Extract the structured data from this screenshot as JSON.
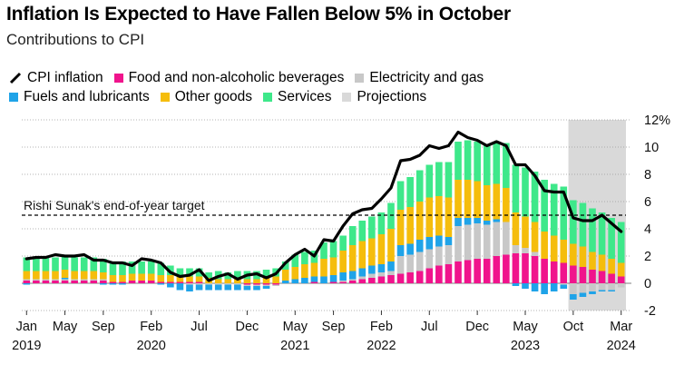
{
  "title": "Inflation Is Expected to Have Fallen Below 5% in October",
  "subtitle": "Contributions to CPI",
  "legend": {
    "cpi": "CPI inflation",
    "food": "Food and non-alcoholic beverages",
    "elec": "Electricity and gas",
    "fuel": "Fuels and lubricants",
    "other": "Other goods",
    "services": "Services",
    "projections": "Projections"
  },
  "colors": {
    "food": "#f0148c",
    "elec": "#c8c8c8",
    "fuel": "#1fa3e8",
    "other": "#f5bd0c",
    "services": "#3ee88a",
    "projections": "#d9d9d9",
    "cpi": "#000000"
  },
  "annotation": "Rishi Sunak's end-of-year target",
  "chart_data": {
    "type": "bar",
    "stacked": true,
    "title": "Inflation Is Expected to Have Fallen Below 5% in October",
    "subtitle": "Contributions to CPI",
    "ylim": [
      -2,
      12
    ],
    "y_ticks": [
      "12%",
      "10",
      "8",
      "6",
      "4",
      "2",
      "0",
      "-2"
    ],
    "y_tick_values": [
      12,
      10,
      8,
      6,
      4,
      2,
      0,
      -2
    ],
    "target_line": 5,
    "projection_start": "2023-10",
    "projection_end": "2024-03",
    "x_ticks": [
      {
        "label": "Jan",
        "year": "2019",
        "index": 0
      },
      {
        "label": "May",
        "year": "",
        "index": 4
      },
      {
        "label": "Sep",
        "year": "",
        "index": 8
      },
      {
        "label": "Feb",
        "year": "2020",
        "index": 13
      },
      {
        "label": "Jul",
        "year": "",
        "index": 18
      },
      {
        "label": "Dec",
        "year": "",
        "index": 23
      },
      {
        "label": "May",
        "year": "2021",
        "index": 28
      },
      {
        "label": "Sep",
        "year": "",
        "index": 32
      },
      {
        "label": "Feb",
        "year": "2022",
        "index": 37
      },
      {
        "label": "Jul",
        "year": "",
        "index": 42
      },
      {
        "label": "Dec",
        "year": "",
        "index": 47
      },
      {
        "label": "May",
        "year": "2023",
        "index": 52
      },
      {
        "label": "Oct",
        "year": "",
        "index": 57
      },
      {
        "label": "Mar",
        "year": "2024",
        "index": 62
      }
    ],
    "categories": [
      "2019-01",
      "2019-02",
      "2019-03",
      "2019-04",
      "2019-05",
      "2019-06",
      "2019-07",
      "2019-08",
      "2019-09",
      "2019-10",
      "2019-11",
      "2019-12",
      "2020-01",
      "2020-02",
      "2020-03",
      "2020-04",
      "2020-05",
      "2020-06",
      "2020-07",
      "2020-08",
      "2020-09",
      "2020-10",
      "2020-11",
      "2020-12",
      "2021-01",
      "2021-02",
      "2021-03",
      "2021-04",
      "2021-05",
      "2021-06",
      "2021-07",
      "2021-08",
      "2021-09",
      "2021-10",
      "2021-11",
      "2021-12",
      "2022-01",
      "2022-02",
      "2022-03",
      "2022-04",
      "2022-05",
      "2022-06",
      "2022-07",
      "2022-08",
      "2022-09",
      "2022-10",
      "2022-11",
      "2022-12",
      "2023-01",
      "2023-02",
      "2023-03",
      "2023-04",
      "2023-05",
      "2023-06",
      "2023-07",
      "2023-08",
      "2023-09",
      "2023-10",
      "2023-11",
      "2023-12",
      "2024-01",
      "2024-02",
      "2024-03"
    ],
    "series": [
      {
        "name": "Food and non-alcoholic beverages",
        "key": "food",
        "values": [
          0.2,
          0.2,
          0.2,
          0.2,
          0.2,
          0.2,
          0.2,
          0.2,
          0.2,
          0.1,
          0.1,
          0.2,
          0.2,
          0.2,
          0.1,
          0.1,
          0.1,
          0.1,
          0.1,
          0.0,
          0.0,
          0.0,
          0.0,
          -0.1,
          -0.1,
          -0.1,
          -0.1,
          0.0,
          0.0,
          0.0,
          0.1,
          0.0,
          0.1,
          0.1,
          0.2,
          0.3,
          0.4,
          0.5,
          0.6,
          0.7,
          0.8,
          0.9,
          1.1,
          1.3,
          1.4,
          1.6,
          1.7,
          1.8,
          1.8,
          2.0,
          2.1,
          2.2,
          2.2,
          2.0,
          1.8,
          1.6,
          1.5,
          1.3,
          1.2,
          1.0,
          0.9,
          0.7,
          0.5
        ]
      },
      {
        "name": "Electricity and gas",
        "key": "elec",
        "values": [
          0.1,
          0.1,
          0.1,
          0.1,
          0.1,
          0.1,
          0.1,
          0.1,
          0.1,
          0.0,
          0.0,
          0.0,
          0.0,
          0.0,
          0.0,
          0.0,
          0.0,
          -0.1,
          -0.1,
          -0.1,
          -0.1,
          -0.1,
          -0.1,
          -0.1,
          -0.1,
          -0.1,
          -0.1,
          0.0,
          0.0,
          0.0,
          0.0,
          0.0,
          0.0,
          0.1,
          0.1,
          0.2,
          0.3,
          0.3,
          0.3,
          1.3,
          1.3,
          1.4,
          1.4,
          1.4,
          1.4,
          2.6,
          2.6,
          2.6,
          2.5,
          2.5,
          2.4,
          0.6,
          0.4,
          0.3,
          0.0,
          0.0,
          -0.1,
          -0.8,
          -0.7,
          -0.6,
          -0.5,
          -0.5,
          -0.3
        ]
      },
      {
        "name": "Fuels and lubricants",
        "key": "fuel",
        "values": [
          -0.1,
          0.0,
          0.0,
          0.0,
          0.1,
          0.0,
          0.0,
          0.0,
          -0.1,
          -0.1,
          -0.1,
          0.0,
          0.0,
          0.0,
          -0.1,
          -0.3,
          -0.5,
          -0.5,
          -0.4,
          -0.4,
          -0.4,
          -0.4,
          -0.4,
          -0.3,
          -0.3,
          -0.2,
          0.0,
          0.2,
          0.3,
          0.4,
          0.4,
          0.5,
          0.5,
          0.6,
          0.6,
          0.6,
          0.6,
          0.6,
          0.7,
          0.8,
          0.8,
          0.9,
          0.9,
          0.8,
          0.6,
          0.6,
          0.5,
          0.4,
          0.3,
          0.2,
          0.0,
          -0.2,
          -0.4,
          -0.6,
          -0.8,
          -0.6,
          -0.3,
          -0.4,
          -0.3,
          -0.2,
          -0.1,
          -0.1,
          0.0
        ]
      },
      {
        "name": "Other goods",
        "key": "other",
        "values": [
          0.6,
          0.6,
          0.6,
          0.6,
          0.6,
          0.6,
          0.6,
          0.6,
          0.5,
          0.5,
          0.5,
          0.5,
          0.5,
          0.5,
          0.5,
          0.5,
          0.4,
          0.4,
          0.4,
          0.4,
          0.3,
          0.3,
          0.3,
          0.3,
          0.3,
          0.4,
          0.5,
          0.8,
          0.9,
          1.0,
          1.0,
          1.3,
          1.3,
          1.6,
          1.9,
          2.0,
          2.0,
          2.2,
          2.4,
          2.6,
          2.7,
          2.8,
          2.9,
          2.9,
          2.9,
          2.8,
          2.8,
          2.7,
          2.6,
          2.6,
          2.5,
          2.4,
          2.3,
          2.2,
          2.0,
          1.9,
          1.7,
          1.6,
          1.5,
          1.3,
          1.2,
          1.1,
          1.0
        ]
      },
      {
        "name": "Services",
        "key": "services",
        "values": [
          1.0,
          1.0,
          1.0,
          1.0,
          1.1,
          1.0,
          1.0,
          1.0,
          1.0,
          1.0,
          1.0,
          0.9,
          0.9,
          0.9,
          0.9,
          0.7,
          0.6,
          0.6,
          0.6,
          0.4,
          0.6,
          0.5,
          0.6,
          0.6,
          0.6,
          0.6,
          0.6,
          0.6,
          0.9,
          0.9,
          0.9,
          1.2,
          1.2,
          1.1,
          1.4,
          1.5,
          1.6,
          1.6,
          1.9,
          2.1,
          2.2,
          2.3,
          2.4,
          2.5,
          2.6,
          2.8,
          2.9,
          2.9,
          3.0,
          3.1,
          3.3,
          3.5,
          3.6,
          3.7,
          3.8,
          3.8,
          3.9,
          3.2,
          3.2,
          3.2,
          3.1,
          3.0,
          3.0
        ]
      },
      {
        "name": "CPI inflation",
        "key": "cpi",
        "type": "line",
        "values": [
          1.8,
          1.9,
          1.9,
          2.1,
          2.0,
          2.0,
          2.1,
          1.7,
          1.7,
          1.5,
          1.5,
          1.3,
          1.8,
          1.7,
          1.5,
          0.8,
          0.5,
          0.6,
          1.0,
          0.2,
          0.5,
          0.7,
          0.3,
          0.6,
          0.7,
          0.4,
          0.7,
          1.5,
          2.1,
          2.5,
          2.0,
          3.2,
          3.1,
          4.2,
          5.1,
          5.4,
          5.5,
          6.2,
          7.0,
          9.0,
          9.1,
          9.4,
          10.1,
          9.9,
          10.1,
          11.1,
          10.7,
          10.5,
          10.1,
          10.4,
          10.1,
          8.7,
          8.7,
          7.9,
          6.8,
          6.7,
          6.7,
          4.8,
          4.6,
          4.6,
          5.0,
          4.4,
          3.8
        ]
      }
    ]
  }
}
